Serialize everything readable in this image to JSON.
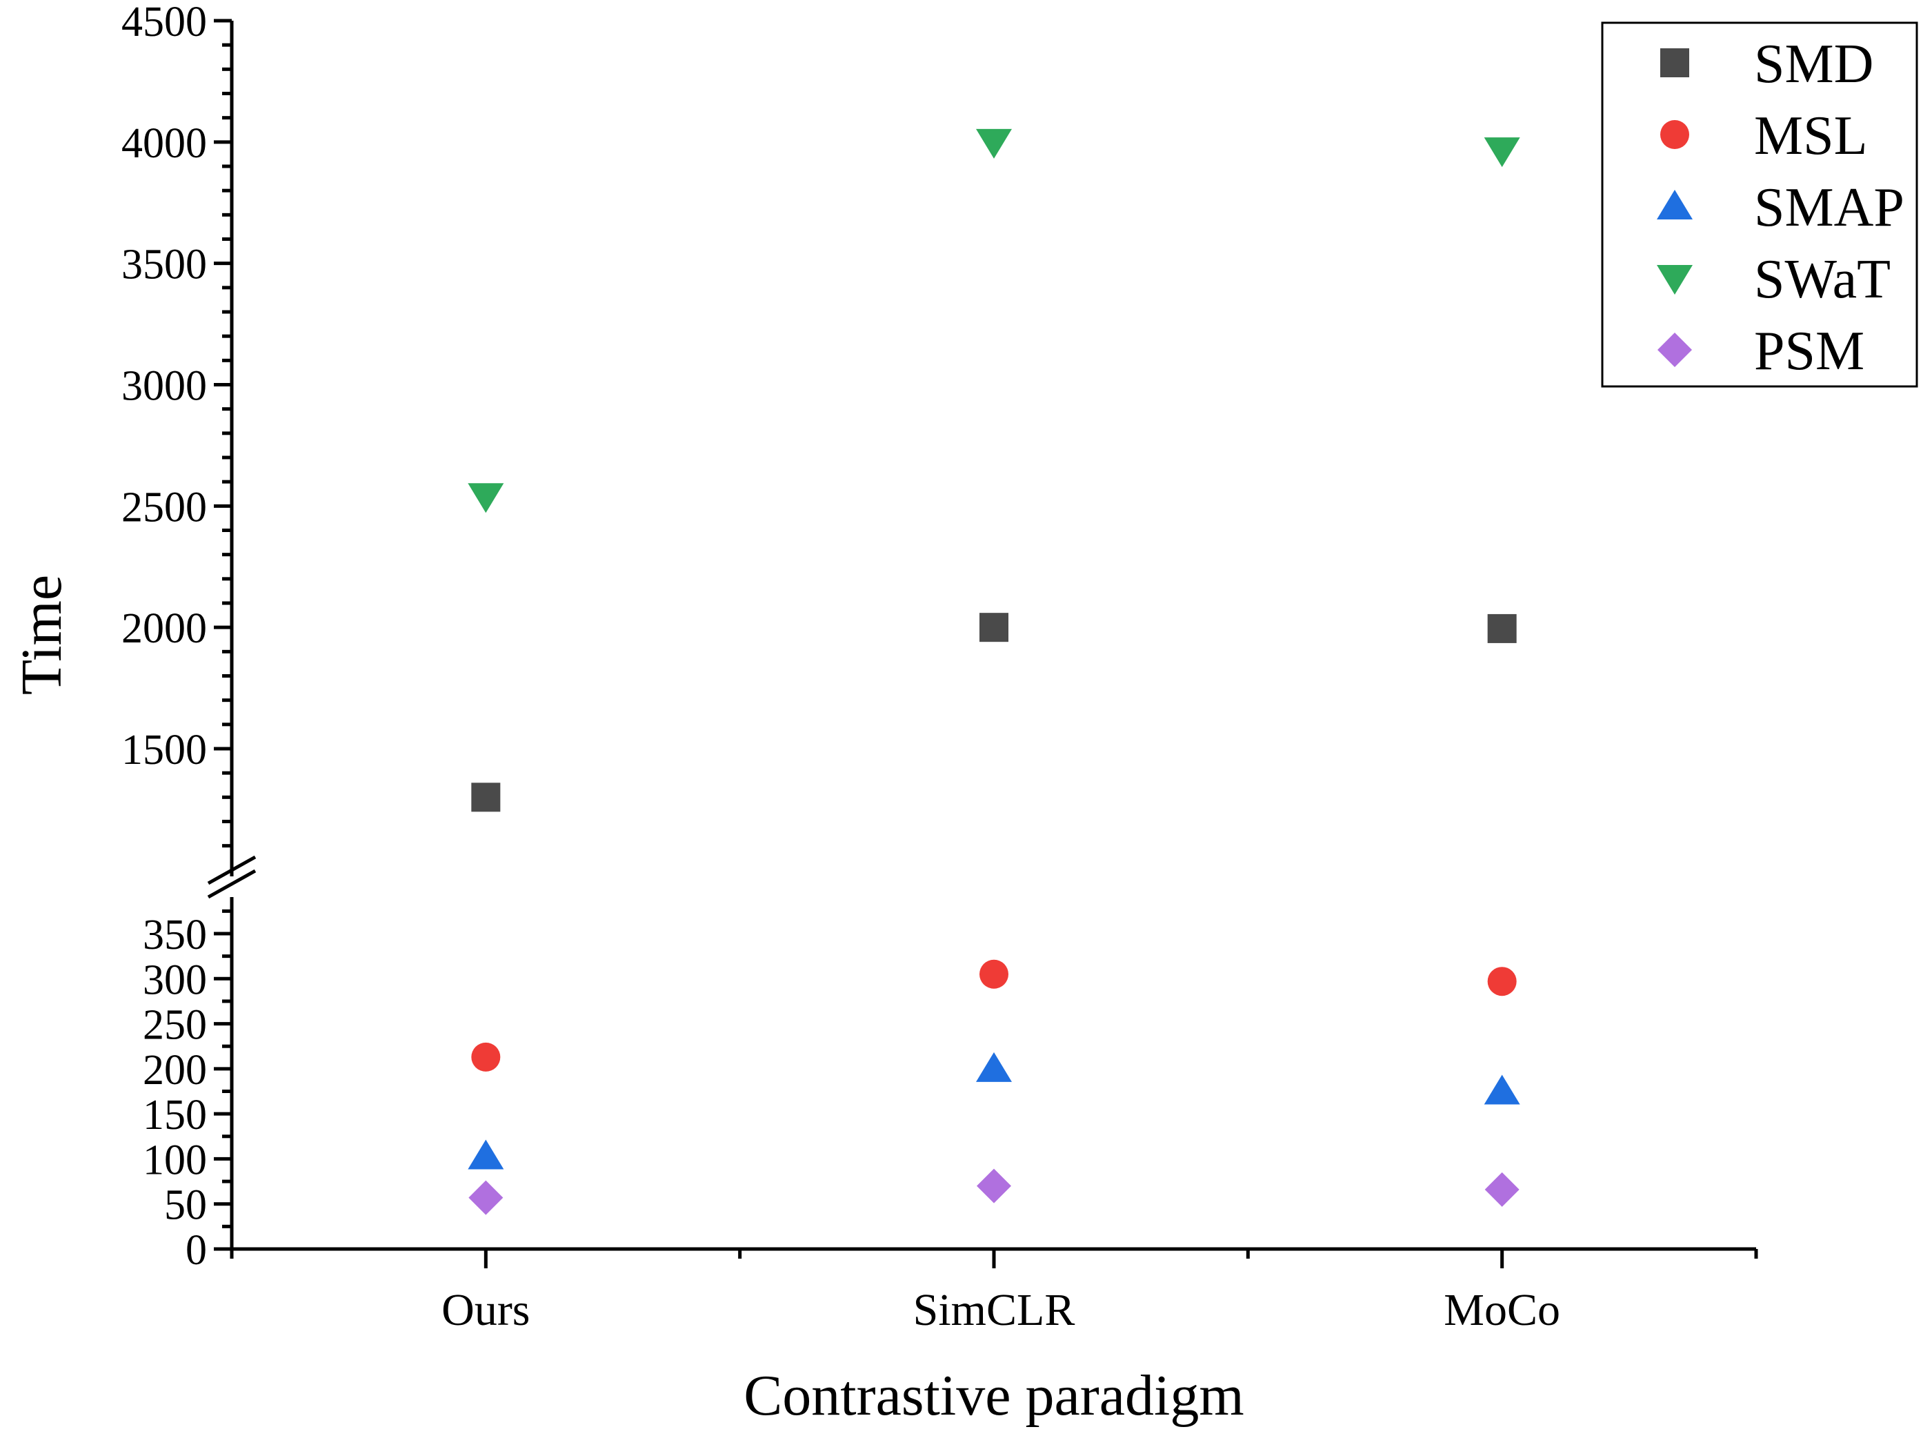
{
  "chart_data": {
    "type": "scatter",
    "title": "",
    "xlabel": "Contrastive paradigm",
    "ylabel": "Time",
    "categories": [
      "Ours",
      "SimCLR",
      "MoCo"
    ],
    "y_axis_broken": true,
    "ylim_lower": [
      0,
      400
    ],
    "ylim_upper": [
      1000,
      4500
    ],
    "yticks_lower": [
      "0",
      "50",
      "100",
      "150",
      "200",
      "250",
      "300",
      "350"
    ],
    "yticks_upper": [
      "1500",
      "2000",
      "2500",
      "3000",
      "3500",
      "4000",
      "4500"
    ],
    "legend_position": "top-right",
    "grid": false,
    "series": [
      {
        "name": "SMD",
        "marker": "square",
        "color": "#4a4a4a",
        "values": [
          1300,
          2000,
          1995
        ]
      },
      {
        "name": "MSL",
        "marker": "circle",
        "color": "#ef3b36",
        "values": [
          213,
          305,
          297
        ]
      },
      {
        "name": "SMAP",
        "marker": "triangle-up",
        "color": "#1f6fe0",
        "values": [
          103,
          200,
          175
        ]
      },
      {
        "name": "SWaT",
        "marker": "triangle-down",
        "color": "#2eaa5a",
        "values": [
          2540,
          4000,
          3965
        ]
      },
      {
        "name": "PSM",
        "marker": "diamond",
        "color": "#b070df",
        "values": [
          57,
          70,
          66
        ]
      }
    ]
  }
}
